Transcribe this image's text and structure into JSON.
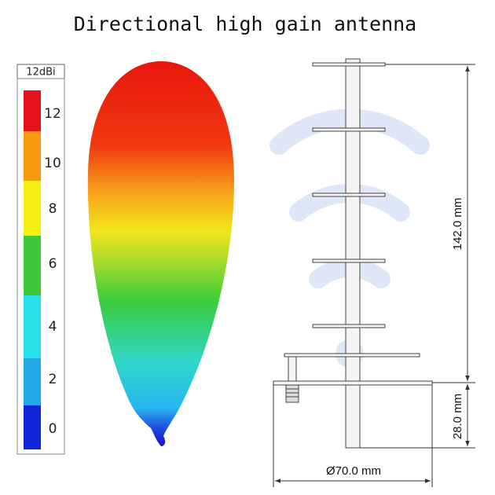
{
  "title": "Directional high gain antenna",
  "legend": {
    "unit": "12dBi",
    "labels": [
      "12",
      "10",
      "8",
      "6",
      "4",
      "2",
      "0"
    ]
  },
  "dimensions": {
    "height": "142.0 mm",
    "base_height": "28.0 mm",
    "diameter": "Ø70.0 mm"
  }
}
